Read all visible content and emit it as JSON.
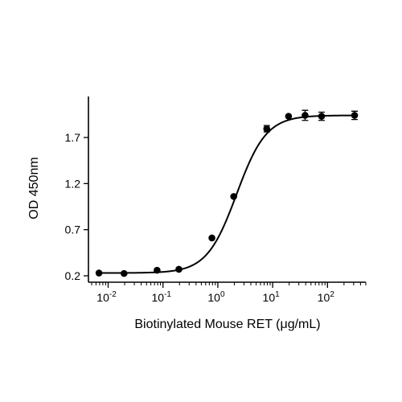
{
  "chart_data": {
    "type": "scatter",
    "title": "",
    "xlabel": "Biotinylated Mouse RET (μg/mL)",
    "ylabel": "OD 450nm",
    "xscale": "log10",
    "xlim": [
      0.005,
      500
    ],
    "ylim": [
      0.17,
      1.95
    ],
    "yticks": [
      0.2,
      0.7,
      1.2,
      1.7
    ],
    "ytick_labels": [
      "0.2",
      "0.7",
      "1.2",
      "1.7"
    ],
    "xticks": [
      {
        "value": 0.01,
        "base": "10",
        "exp": "-2"
      },
      {
        "value": 0.1,
        "base": "10",
        "exp": "-1"
      },
      {
        "value": 1,
        "base": "10",
        "exp": "0"
      },
      {
        "value": 10,
        "base": "10",
        "exp": "1"
      },
      {
        "value": 100,
        "base": "10",
        "exp": "2"
      }
    ],
    "grid": false,
    "series": [
      {
        "points": [
          {
            "x": 0.0068,
            "y": 0.23,
            "err": 0
          },
          {
            "x": 0.0195,
            "y": 0.225,
            "err": 0
          },
          {
            "x": 0.078,
            "y": 0.26,
            "err": 0
          },
          {
            "x": 0.195,
            "y": 0.27,
            "err": 0
          },
          {
            "x": 0.78,
            "y": 0.61,
            "err": 0
          },
          {
            "x": 1.95,
            "y": 1.06,
            "err": 0
          },
          {
            "x": 7.8,
            "y": 1.795,
            "err": 0.035
          },
          {
            "x": 19.5,
            "y": 1.93,
            "err": 0
          },
          {
            "x": 39,
            "y": 1.94,
            "err": 0.055
          },
          {
            "x": 78,
            "y": 1.93,
            "err": 0.045
          },
          {
            "x": 312,
            "y": 1.94,
            "err": 0.045
          }
        ],
        "fit": {
          "model": "4PL",
          "bottom": 0.23,
          "top": 1.94,
          "ec50": 2.2,
          "hill": 1.6
        }
      }
    ]
  }
}
